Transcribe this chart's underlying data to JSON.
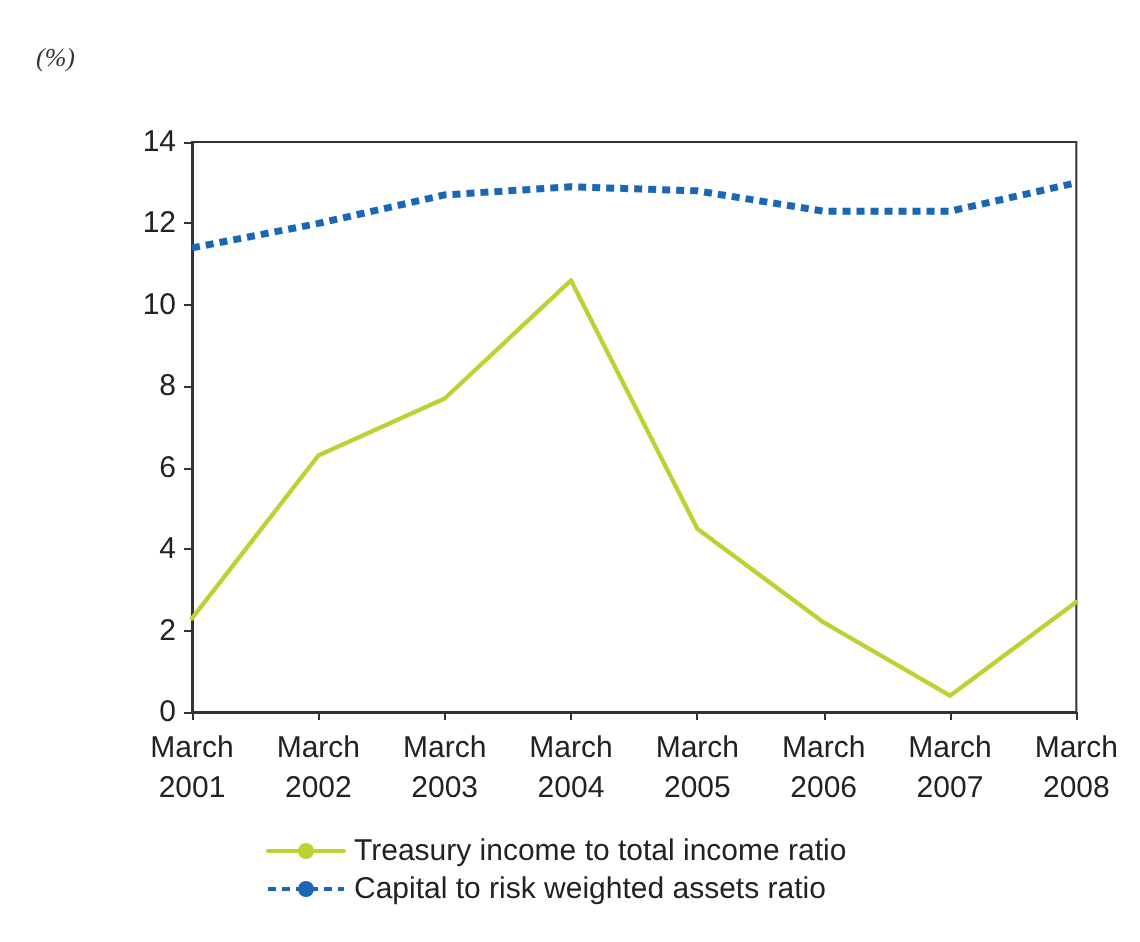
{
  "chart_data": {
    "type": "line",
    "ylabel": "(%)",
    "categories": [
      "March\n2001",
      "March\n2002",
      "March\n2003",
      "March\n2004",
      "March\n2005",
      "March\n2006",
      "March\n2007",
      "March\n2008"
    ],
    "series": [
      {
        "name": "Treasury income to total income ratio",
        "color": "#b8d433",
        "line_style": "solid",
        "values": [
          2.3,
          6.3,
          7.7,
          10.6,
          4.5,
          2.2,
          0.4,
          2.7
        ]
      },
      {
        "name": "Capital to risk weighted assets ratio",
        "color": "#1a67b3",
        "line_style": "dashed",
        "values": [
          11.4,
          12.0,
          12.7,
          12.9,
          12.8,
          12.3,
          12.3,
          13.0
        ]
      }
    ],
    "ylim": [
      0,
      14
    ],
    "yticks": [
      0,
      2,
      4,
      6,
      8,
      10,
      12,
      14
    ],
    "grid": false,
    "legend": "bottom",
    "marker": "none"
  }
}
